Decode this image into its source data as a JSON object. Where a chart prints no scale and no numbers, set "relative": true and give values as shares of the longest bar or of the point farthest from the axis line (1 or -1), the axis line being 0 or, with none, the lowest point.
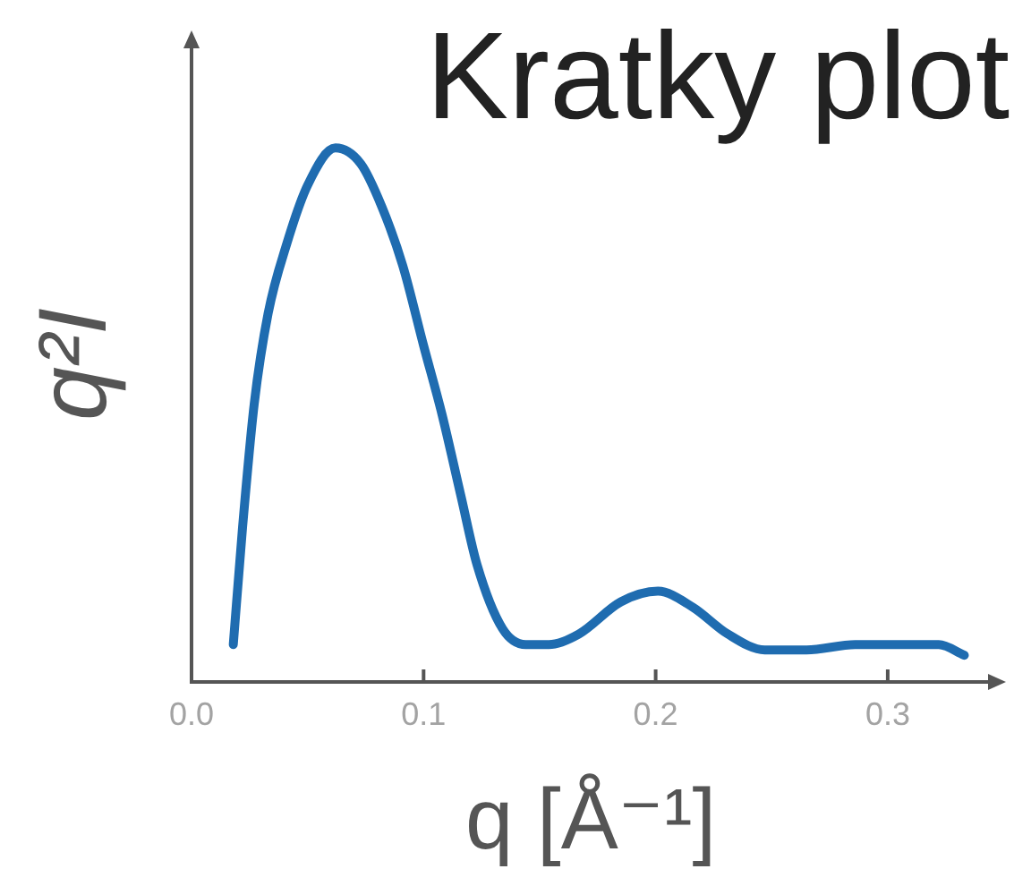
{
  "chart_data": {
    "type": "line",
    "title": "Kratky plot",
    "xlabel": "q [Å⁻¹]",
    "ylabel": "q²I",
    "relative": true,
    "x": [
      0.018,
      0.022,
      0.027,
      0.033,
      0.041,
      0.05,
      0.062,
      0.073,
      0.082,
      0.091,
      0.1,
      0.108,
      0.116,
      0.123,
      0.134,
      0.144,
      0.154,
      0.167,
      0.185,
      0.201,
      0.216,
      0.231,
      0.247,
      0.265,
      0.286,
      0.306,
      0.322,
      0.333
    ],
    "values": [
      0.07,
      0.29,
      0.52,
      0.69,
      0.82,
      0.93,
      1,
      0.97,
      0.89,
      0.78,
      0.63,
      0.5,
      0.35,
      0.22,
      0.1,
      0.07,
      0.07,
      0.09,
      0.15,
      0.17,
      0.14,
      0.09,
      0.06,
      0.06,
      0.07,
      0.07,
      0.07,
      0.05
    ],
    "color": "#1f6cb0",
    "xlim": [
      0,
      0.344
    ],
    "xticks": [
      {
        "value": 0,
        "label": "0.0"
      },
      0.1,
      0.2,
      0.3
    ]
  }
}
